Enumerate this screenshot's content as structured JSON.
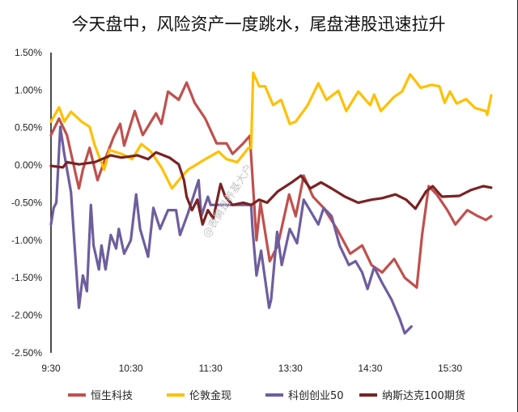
{
  "chart_data": {
    "type": "line",
    "title": "今天盘中，风险资产一度跳水，尾盘港股迅速拉升",
    "xlabel": "",
    "ylabel": "",
    "x_ticks": [
      "9:30",
      "10:30",
      "11:30",
      "13:30",
      "14:30",
      "15:30"
    ],
    "y_ticks": [
      "1.50%",
      "1.00%",
      "0.50%",
      "0.00%",
      "-0.50%",
      "-1.00%",
      "-1.50%",
      "-2.00%",
      "-2.50%"
    ],
    "ylim": [
      -2.5,
      1.5
    ],
    "y_unit": "%",
    "grid": false,
    "legend": "bottom",
    "watermark": "@表舅是养基大户",
    "series": [
      {
        "name": "恒生科技",
        "color": "#C0504D",
        "points": [
          [
            "9:30",
            0.4
          ],
          [
            "9:36",
            0.62
          ],
          [
            "9:42",
            0.4
          ],
          [
            "9:51",
            -0.31
          ],
          [
            "9:54",
            -0.06
          ],
          [
            "9:59",
            0.23
          ],
          [
            "10:05",
            -0.2
          ],
          [
            "10:09",
            0.0
          ],
          [
            "10:17",
            0.37
          ],
          [
            "10:22",
            0.55
          ],
          [
            "10:25",
            0.26
          ],
          [
            "10:33",
            0.72
          ],
          [
            "10:39",
            0.4
          ],
          [
            "10:49",
            0.69
          ],
          [
            "10:53",
            0.55
          ],
          [
            "10:58",
            0.98
          ],
          [
            "11:06",
            0.87
          ],
          [
            "11:12",
            1.1
          ],
          [
            "11:18",
            0.83
          ],
          [
            "11:26",
            0.62
          ],
          [
            "11:39",
            0.29
          ],
          [
            "11:54",
            0.29
          ],
          [
            "12:03",
            0.15
          ],
          [
            "12:19",
            0.29
          ],
          [
            "12:29",
            0.39
          ],
          [
            "12:39",
            -1.0
          ],
          [
            "12:45",
            -0.5
          ],
          [
            "12:59",
            -1.28
          ],
          [
            "13:11",
            -1.07
          ],
          [
            "13:28",
            -0.39
          ],
          [
            "13:34",
            -0.68
          ],
          [
            "13:40",
            -0.14
          ],
          [
            "13:47",
            -0.42
          ],
          [
            "13:55",
            -0.57
          ],
          [
            "14:05",
            -0.85
          ],
          [
            "14:15",
            -1.18
          ],
          [
            "14:24",
            -1.07
          ],
          [
            "14:31",
            -1.33
          ],
          [
            "14:39",
            -1.43
          ],
          [
            "14:48",
            -1.25
          ],
          [
            "14:56",
            -1.5
          ],
          [
            "15:05",
            -1.63
          ],
          [
            "15:09",
            -0.93
          ],
          [
            "15:14",
            -0.28
          ],
          [
            "15:20",
            -0.39
          ],
          [
            "15:28",
            -0.6
          ],
          [
            "15:34",
            -0.79
          ],
          [
            "15:43",
            -0.6
          ],
          [
            "15:51",
            -0.68
          ],
          [
            "15:57",
            -0.73
          ],
          [
            "16:01",
            -0.68
          ]
        ]
      },
      {
        "name": "伦敦金现",
        "color": "#FFC000",
        "points": [
          [
            "9:30",
            0.58
          ],
          [
            "9:36",
            0.77
          ],
          [
            "9:40",
            0.58
          ],
          [
            "9:45",
            0.71
          ],
          [
            "9:53",
            0.58
          ],
          [
            "9:59",
            0.51
          ],
          [
            "10:03",
            0.26
          ],
          [
            "10:10",
            -0.06
          ],
          [
            "10:14",
            0.2
          ],
          [
            "10:23",
            0.15
          ],
          [
            "10:31",
            0.08
          ],
          [
            "10:38",
            0.28
          ],
          [
            "10:45",
            0.18
          ],
          [
            "10:53",
            -0.03
          ],
          [
            "11:01",
            -0.31
          ],
          [
            "11:06",
            -0.2
          ],
          [
            "11:13",
            -0.06
          ],
          [
            "11:26",
            0.08
          ],
          [
            "11:42",
            0.18
          ],
          [
            "11:54",
            0.08
          ],
          [
            "12:10",
            0.04
          ],
          [
            "12:27",
            0.23
          ],
          [
            "12:31",
            0.23
          ],
          [
            "12:34",
            1.23
          ],
          [
            "12:43",
            1.05
          ],
          [
            "12:52",
            1.05
          ],
          [
            "13:04",
            0.8
          ],
          [
            "13:16",
            0.87
          ],
          [
            "13:29",
            0.55
          ],
          [
            "13:34",
            0.58
          ],
          [
            "13:43",
            0.8
          ],
          [
            "13:51",
            1.09
          ],
          [
            "13:57",
            0.87
          ],
          [
            "14:06",
            0.99
          ],
          [
            "14:12",
            0.72
          ],
          [
            "14:21",
            0.98
          ],
          [
            "14:30",
            0.8
          ],
          [
            "14:33",
            0.94
          ],
          [
            "14:38",
            0.72
          ],
          [
            "14:48",
            0.91
          ],
          [
            "14:54",
            0.98
          ],
          [
            "15:00",
            1.21
          ],
          [
            "15:08",
            1.03
          ],
          [
            "15:16",
            1.07
          ],
          [
            "15:22",
            1.05
          ],
          [
            "15:26",
            0.83
          ],
          [
            "15:30",
            0.98
          ],
          [
            "15:35",
            0.82
          ],
          [
            "15:42",
            0.88
          ],
          [
            "15:49",
            0.76
          ],
          [
            "15:57",
            0.72
          ],
          [
            "15:58",
            0.67
          ],
          [
            "16:01",
            0.93
          ]
        ]
      },
      {
        "name": "科创创业50",
        "color": "#6E5E9E",
        "points": [
          [
            "9:30",
            -0.79
          ],
          [
            "9:32",
            -0.57
          ],
          [
            "9:34",
            -0.5
          ],
          [
            "9:37",
            0.51
          ],
          [
            "9:40",
            0.15
          ],
          [
            "9:45",
            -0.36
          ],
          [
            "9:48",
            -1.14
          ],
          [
            "9:51",
            -1.9
          ],
          [
            "9:54",
            -1.47
          ],
          [
            "9:57",
            -1.68
          ],
          [
            "10:00",
            -0.53
          ],
          [
            "10:02",
            -1.07
          ],
          [
            "10:06",
            -1.39
          ],
          [
            "10:08",
            -1.07
          ],
          [
            "10:11",
            -1.39
          ],
          [
            "10:15",
            -0.93
          ],
          [
            "10:19",
            -1.11
          ],
          [
            "10:21",
            -0.85
          ],
          [
            "10:25",
            -1.18
          ],
          [
            "10:30",
            -1.0
          ],
          [
            "10:34",
            -0.39
          ],
          [
            "10:37",
            -0.85
          ],
          [
            "10:43",
            -1.22
          ],
          [
            "10:47",
            -0.57
          ],
          [
            "10:52",
            -0.85
          ],
          [
            "10:58",
            -0.6
          ],
          [
            "11:04",
            -0.6
          ],
          [
            "11:07",
            -0.93
          ],
          [
            "11:13",
            -0.64
          ],
          [
            "11:21",
            -0.2
          ],
          [
            "11:23",
            -0.68
          ],
          [
            "11:28",
            -0.42
          ],
          [
            "11:30",
            -0.53
          ],
          [
            "12:31",
            -0.53
          ],
          [
            "12:33",
            -0.85
          ],
          [
            "12:39",
            -1.47
          ],
          [
            "12:46",
            -1.14
          ],
          [
            "12:58",
            -1.9
          ],
          [
            "13:01",
            -1.79
          ],
          [
            "13:10",
            -0.89
          ],
          [
            "13:17",
            -1.33
          ],
          [
            "13:29",
            -0.85
          ],
          [
            "13:35",
            -1.04
          ],
          [
            "13:40",
            -0.46
          ],
          [
            "13:46",
            -0.64
          ],
          [
            "13:51",
            -0.79
          ],
          [
            "13:55",
            -0.57
          ],
          [
            "14:01",
            -0.68
          ],
          [
            "14:07",
            -1.07
          ],
          [
            "14:14",
            -1.33
          ],
          [
            "14:19",
            -1.28
          ],
          [
            "14:24",
            -1.43
          ],
          [
            "14:28",
            -1.65
          ],
          [
            "14:33",
            -1.36
          ],
          [
            "14:39",
            -1.57
          ],
          [
            "14:46",
            -1.79
          ],
          [
            "14:52",
            -2.04
          ],
          [
            "14:56",
            -2.24
          ],
          [
            "15:01",
            -2.15
          ]
        ]
      },
      {
        "name": "纳斯达克100期货",
        "color": "#7A2222",
        "points": [
          [
            "9:30",
            -0.01
          ],
          [
            "9:39",
            -0.03
          ],
          [
            "9:42",
            0.04
          ],
          [
            "9:51",
            0.01
          ],
          [
            "10:03",
            0.04
          ],
          [
            "10:15",
            0.13
          ],
          [
            "10:23",
            0.1
          ],
          [
            "10:35",
            0.13
          ],
          [
            "10:43",
            0.08
          ],
          [
            "10:49",
            0.17
          ],
          [
            "10:59",
            0.1
          ],
          [
            "11:06",
            0.01
          ],
          [
            "11:10",
            -0.2
          ],
          [
            "11:12",
            -0.42
          ],
          [
            "11:16",
            -0.6
          ],
          [
            "11:20",
            -0.46
          ],
          [
            "11:24",
            -0.79
          ],
          [
            "11:28",
            -0.6
          ],
          [
            "11:34",
            -0.71
          ],
          [
            "11:45",
            -0.25
          ],
          [
            "11:52",
            -0.42
          ],
          [
            "12:03",
            -0.53
          ],
          [
            "12:19",
            -0.5
          ],
          [
            "12:31",
            -0.53
          ],
          [
            "12:43",
            -0.46
          ],
          [
            "12:55",
            -0.5
          ],
          [
            "13:11",
            -0.35
          ],
          [
            "13:31",
            -0.23
          ],
          [
            "13:38",
            -0.14
          ],
          [
            "13:45",
            -0.31
          ],
          [
            "13:53",
            -0.23
          ],
          [
            "14:01",
            -0.31
          ],
          [
            "14:11",
            -0.42
          ],
          [
            "14:21",
            -0.5
          ],
          [
            "14:31",
            -0.46
          ],
          [
            "14:39",
            -0.44
          ],
          [
            "14:49",
            -0.39
          ],
          [
            "14:57",
            -0.46
          ],
          [
            "15:04",
            -0.58
          ],
          [
            "15:12",
            -0.35
          ],
          [
            "15:17",
            -0.28
          ],
          [
            "15:24",
            -0.42
          ],
          [
            "15:37",
            -0.41
          ],
          [
            "15:46",
            -0.33
          ],
          [
            "15:55",
            -0.28
          ],
          [
            "16:01",
            -0.3
          ]
        ]
      }
    ]
  }
}
